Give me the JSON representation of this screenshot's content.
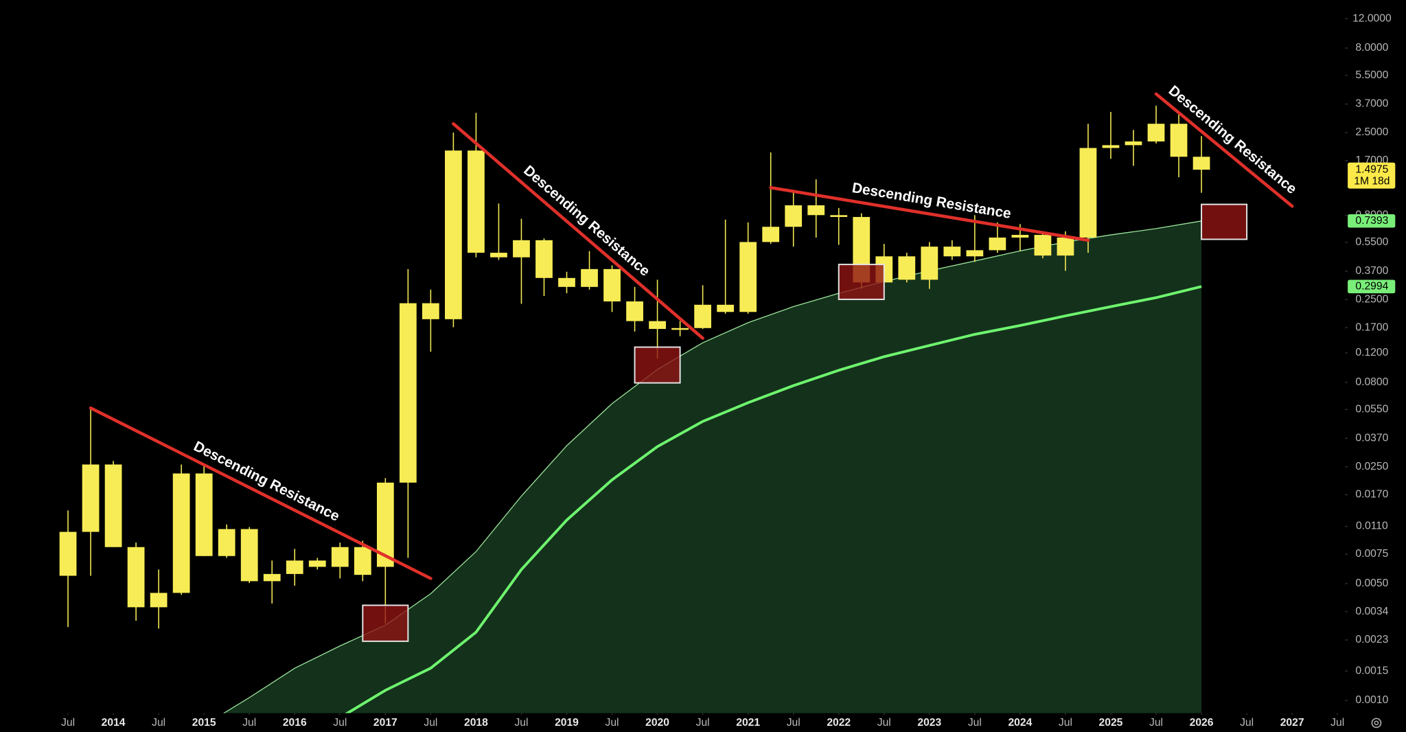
{
  "chart_data": {
    "type": "candlestick",
    "log_scale": true,
    "color": "#f7ec55",
    "x": [
      "2013-07",
      "2013-10",
      "2014-01",
      "2014-04",
      "2014-07",
      "2014-10",
      "2015-01",
      "2015-04",
      "2015-07",
      "2015-10",
      "2016-01",
      "2016-04",
      "2016-07",
      "2016-10",
      "2017-01",
      "2017-04",
      "2017-07",
      "2017-10",
      "2018-01",
      "2018-04",
      "2018-07",
      "2018-10",
      "2019-01",
      "2019-04",
      "2019-07",
      "2019-10",
      "2020-01",
      "2020-04",
      "2020-07",
      "2020-10",
      "2021-01",
      "2021-04",
      "2021-07",
      "2021-10",
      "2022-01",
      "2022-04",
      "2022-07",
      "2022-10",
      "2023-01",
      "2023-04",
      "2023-07",
      "2023-10",
      "2024-01",
      "2024-04",
      "2024-07",
      "2024-10",
      "2025-01",
      "2025-04",
      "2025-07",
      "2025-10",
      "2026-01"
    ],
    "open": [
      0.00557,
      0.0102,
      0.0258,
      0.00827,
      0.00361,
      0.0044,
      0.0228,
      0.00731,
      0.0106,
      0.00517,
      0.00571,
      0.00687,
      0.0063,
      0.00827,
      0.0063,
      0.0201,
      0.191,
      0.191,
      1.95,
      0.477,
      0.448,
      0.567,
      0.337,
      0.298,
      0.381,
      0.244,
      0.186,
      0.165,
      0.169,
      0.233,
      0.211,
      0.553,
      0.682,
      0.917,
      0.801,
      0.781,
      0.317,
      0.454,
      0.329,
      0.519,
      0.454,
      0.494,
      0.588,
      0.61,
      0.459,
      0.588,
      2.02,
      2.1,
      2.21,
      2.82,
      1.79
    ],
    "high": [
      0.0137,
      0.0562,
      0.0271,
      0.0088,
      0.00607,
      0.0258,
      0.0252,
      0.0113,
      0.0109,
      0.00687,
      0.00807,
      0.00713,
      0.0088,
      0.00902,
      0.0214,
      0.381,
      0.287,
      2.5,
      3.28,
      0.94,
      0.762,
      0.581,
      0.367,
      0.488,
      0.401,
      0.298,
      0.329,
      0.186,
      0.305,
      0.753,
      0.725,
      1.9,
      1.12,
      1.31,
      0.884,
      0.821,
      0.539,
      0.477,
      0.553,
      0.567,
      0.801,
      0.725,
      0.708,
      0.641,
      0.641,
      2.82,
      3.32,
      2.59,
      3.62,
      3.2,
      2.38
    ],
    "low": [
      0.00275,
      0.00557,
      0.00827,
      0.003,
      0.00269,
      0.00429,
      0.00731,
      0.00713,
      0.00504,
      0.0038,
      0.00486,
      0.00607,
      0.00537,
      0.00517,
      0.00289,
      0.00713,
      0.122,
      0.171,
      0.448,
      0.432,
      0.236,
      0.263,
      0.273,
      0.287,
      0.211,
      0.161,
      0.111,
      0.151,
      0.167,
      0.206,
      0.206,
      0.539,
      0.519,
      0.588,
      0.532,
      0.29,
      0.298,
      0.317,
      0.29,
      0.432,
      0.421,
      0.477,
      0.488,
      0.442,
      0.372,
      0.477,
      1.74,
      1.58,
      2.15,
      1.35,
      1.09
    ],
    "close": [
      0.0102,
      0.0258,
      0.00827,
      0.00361,
      0.0044,
      0.0228,
      0.00731,
      0.0106,
      0.00517,
      0.00571,
      0.00687,
      0.0063,
      0.00827,
      0.00564,
      0.0201,
      0.238,
      0.238,
      1.95,
      0.477,
      0.448,
      0.567,
      0.337,
      0.298,
      0.381,
      0.244,
      0.186,
      0.167,
      0.169,
      0.233,
      0.211,
      0.553,
      0.682,
      0.917,
      0.801,
      0.781,
      0.317,
      0.454,
      0.329,
      0.519,
      0.454,
      0.494,
      0.588,
      0.61,
      0.459,
      0.588,
      2.02,
      2.1,
      2.21,
      2.82,
      1.79,
      1.4975
    ],
    "countdown": "1M 18d",
    "lines": [
      {
        "color": "#9be59b",
        "fill": "#14311c",
        "x": [
          "2015-01",
          "2015-07",
          "2016-01",
          "2016-07",
          "2017-01",
          "2017-07",
          "2018-01",
          "2018-07",
          "2019-01",
          "2019-07",
          "2020-01",
          "2020-07",
          "2021-01",
          "2021-07",
          "2022-01",
          "2022-07",
          "2023-01",
          "2023-07",
          "2024-01",
          "2024-07",
          "2025-01",
          "2025-07",
          "2026-01"
        ],
        "values": [
          0.00071,
          0.00104,
          0.00156,
          0.00212,
          0.00282,
          0.00435,
          0.00778,
          0.0167,
          0.0334,
          0.0597,
          0.0955,
          0.138,
          0.182,
          0.227,
          0.273,
          0.321,
          0.372,
          0.426,
          0.489,
          0.553,
          0.61,
          0.665,
          0.7393
        ]
      },
      {
        "color": "#6ef56e",
        "x": [
          "2016-07",
          "2017-01",
          "2017-07",
          "2018-01",
          "2018-07",
          "2019-01",
          "2019-07",
          "2020-01",
          "2020-07",
          "2021-01",
          "2021-07",
          "2022-01",
          "2022-07",
          "2023-01",
          "2023-07",
          "2024-01",
          "2024-07",
          "2025-01",
          "2025-07",
          "2026-01"
        ],
        "values": [
          0.00079,
          0.00115,
          0.00156,
          0.00256,
          0.00607,
          0.012,
          0.0209,
          0.033,
          0.0467,
          0.0605,
          0.0765,
          0.0944,
          0.114,
          0.133,
          0.155,
          0.175,
          0.2,
          0.227,
          0.257,
          0.2994
        ]
      }
    ],
    "annotations": [
      {
        "text": "Descending Resistance",
        "color": "#e0302a",
        "from": [
          "2013-10",
          0.0562
        ],
        "to": [
          "2017-07",
          0.00537
        ]
      },
      {
        "text": "Descending Resistance",
        "color": "#e0302a",
        "from": [
          "2017-10",
          2.82
        ],
        "to": [
          "2020-07",
          0.147
        ]
      },
      {
        "text": "Descending Resistance",
        "color": "#e0302a",
        "from": [
          "2021-04",
          1.17
        ],
        "to": [
          "2024-10",
          0.567
        ]
      },
      {
        "text": "Descending Resistance",
        "color": "#e0302a",
        "from": [
          "2025-07",
          4.25
        ],
        "to": [
          "2027-01",
          0.906
        ]
      }
    ],
    "zones": [
      {
        "x": [
          "2016-10",
          "2017-04"
        ],
        "y": [
          0.00226,
          0.00371
        ],
        "color": "#8e1414"
      },
      {
        "x": [
          "2019-10",
          "2020-04"
        ],
        "y": [
          0.0794,
          0.13
        ],
        "color": "#8e1414"
      },
      {
        "x": [
          "2022-01",
          "2022-07"
        ],
        "y": [
          0.251,
          0.406
        ],
        "color": "#8e1414"
      },
      {
        "x": [
          "2026-01",
          "2026-07"
        ],
        "y": [
          0.574,
          0.929
        ],
        "color": "#8e1414"
      }
    ],
    "xlim": [
      "2012-10",
      "2027-08"
    ],
    "ylim": [
      0.00084,
      15.5
    ],
    "xticks": [
      {
        "value": "2013-07",
        "label": "Jul"
      },
      2014,
      {
        "value": "2014-07",
        "label": "Jul"
      },
      2015,
      {
        "value": "2015-07",
        "label": "Jul"
      },
      2016,
      {
        "value": "2016-07",
        "label": "Jul"
      },
      2017,
      {
        "value": "2017-07",
        "label": "Jul"
      },
      2018,
      {
        "value": "2018-07",
        "label": "Jul"
      },
      2019,
      {
        "value": "2019-07",
        "label": "Jul"
      },
      2020,
      {
        "value": "2020-07",
        "label": "Jul"
      },
      2021,
      {
        "value": "2021-07",
        "label": "Jul"
      },
      2022,
      {
        "value": "2022-07",
        "label": "Jul"
      },
      2023,
      {
        "value": "2023-07",
        "label": "Jul"
      },
      2024,
      {
        "value": "2024-07",
        "label": "Jul"
      },
      2025,
      {
        "value": "2025-07",
        "label": "Jul"
      },
      2026,
      {
        "value": "2026-07",
        "label": "Jul"
      },
      2027,
      {
        "value": "2027-07",
        "label": "Jul"
      }
    ],
    "yticks": [
      {
        "value": 12,
        "label": "12.0000"
      },
      {
        "value": 8,
        "label": "8.0000"
      },
      {
        "value": 5.5,
        "label": "5.5000"
      },
      {
        "value": 3.7,
        "label": "3.7000"
      },
      {
        "value": 2.5,
        "label": "2.5000"
      },
      {
        "value": 1.7,
        "label": "1.7000"
      },
      {
        "value": 0.8,
        "label": "0.8000"
      },
      {
        "value": 0.55,
        "label": "0.5500"
      },
      {
        "value": 0.37,
        "label": "0.3700"
      },
      {
        "value": 0.25,
        "label": "0.2500"
      },
      {
        "value": 0.17,
        "label": "0.1700"
      },
      {
        "value": 0.12,
        "label": "0.1200"
      },
      {
        "value": 0.08,
        "label": "0.0800"
      },
      {
        "value": 0.055,
        "label": "0.0550"
      },
      {
        "value": 0.037,
        "label": "0.0370"
      },
      {
        "value": 0.025,
        "label": "0.0250"
      },
      {
        "value": 0.017,
        "label": "0.0170"
      },
      {
        "value": 0.011,
        "label": "0.0110"
      },
      {
        "value": 0.0075,
        "label": "0.0075"
      },
      {
        "value": 0.005,
        "label": "0.0050"
      },
      {
        "value": 0.0034,
        "label": "0.0034"
      },
      {
        "value": 0.0023,
        "label": "0.0023"
      },
      {
        "value": 0.0015,
        "label": "0.0015"
      },
      {
        "value": 0.001,
        "label": "0.0010"
      }
    ]
  }
}
